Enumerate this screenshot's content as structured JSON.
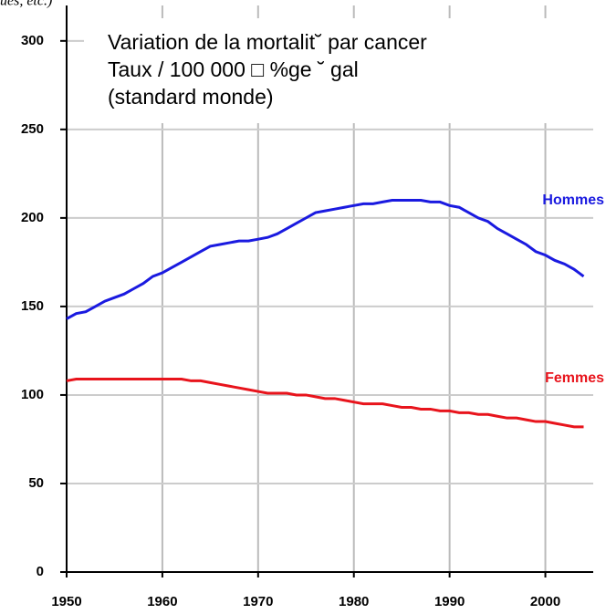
{
  "chart_data": {
    "type": "line",
    "title": [
      "Variation de la mortalit˘ par cancer",
      "Taux / 100 000 □ %ge ˘ gal",
      "(standard monde)"
    ],
    "annotation": "ues, etc.)",
    "x": [
      1950,
      1951,
      1952,
      1953,
      1954,
      1955,
      1956,
      1957,
      1958,
      1959,
      1960,
      1961,
      1962,
      1963,
      1964,
      1965,
      1966,
      1967,
      1968,
      1969,
      1970,
      1971,
      1972,
      1973,
      1974,
      1975,
      1976,
      1977,
      1978,
      1979,
      1980,
      1981,
      1982,
      1983,
      1984,
      1985,
      1986,
      1987,
      1988,
      1989,
      1990,
      1991,
      1992,
      1993,
      1994,
      1995,
      1996,
      1997,
      1998,
      1999,
      2000,
      2001,
      2002,
      2003,
      2004
    ],
    "series": [
      {
        "name": "Hommes",
        "color": "#1a1ae0",
        "values": [
          143,
          146,
          147,
          150,
          153,
          155,
          157,
          160,
          163,
          167,
          169,
          172,
          175,
          178,
          181,
          184,
          185,
          186,
          187,
          187,
          188,
          189,
          191,
          194,
          197,
          200,
          203,
          204,
          205,
          206,
          207,
          208,
          208,
          209,
          210,
          210,
          210,
          210,
          209,
          209,
          207,
          206,
          203,
          200,
          198,
          194,
          191,
          188,
          185,
          181,
          179,
          176,
          174,
          171,
          167
        ]
      },
      {
        "name": "Femmes",
        "color": "#e8141c",
        "values": [
          108,
          109,
          109,
          109,
          109,
          109,
          109,
          109,
          109,
          109,
          109,
          109,
          109,
          108,
          108,
          107,
          106,
          105,
          104,
          103,
          102,
          101,
          101,
          101,
          100,
          100,
          99,
          98,
          98,
          97,
          96,
          95,
          95,
          95,
          94,
          93,
          93,
          92,
          92,
          91,
          91,
          90,
          90,
          89,
          89,
          88,
          87,
          87,
          86,
          85,
          85,
          84,
          83,
          82,
          82
        ]
      }
    ],
    "xlim": [
      1950,
      2005
    ],
    "xticks": [
      1950,
      1960,
      1970,
      1980,
      1990,
      2000
    ],
    "ylim": [
      0,
      320
    ],
    "yticks": [
      0,
      50,
      100,
      150,
      200,
      250,
      300
    ],
    "grid": true
  }
}
